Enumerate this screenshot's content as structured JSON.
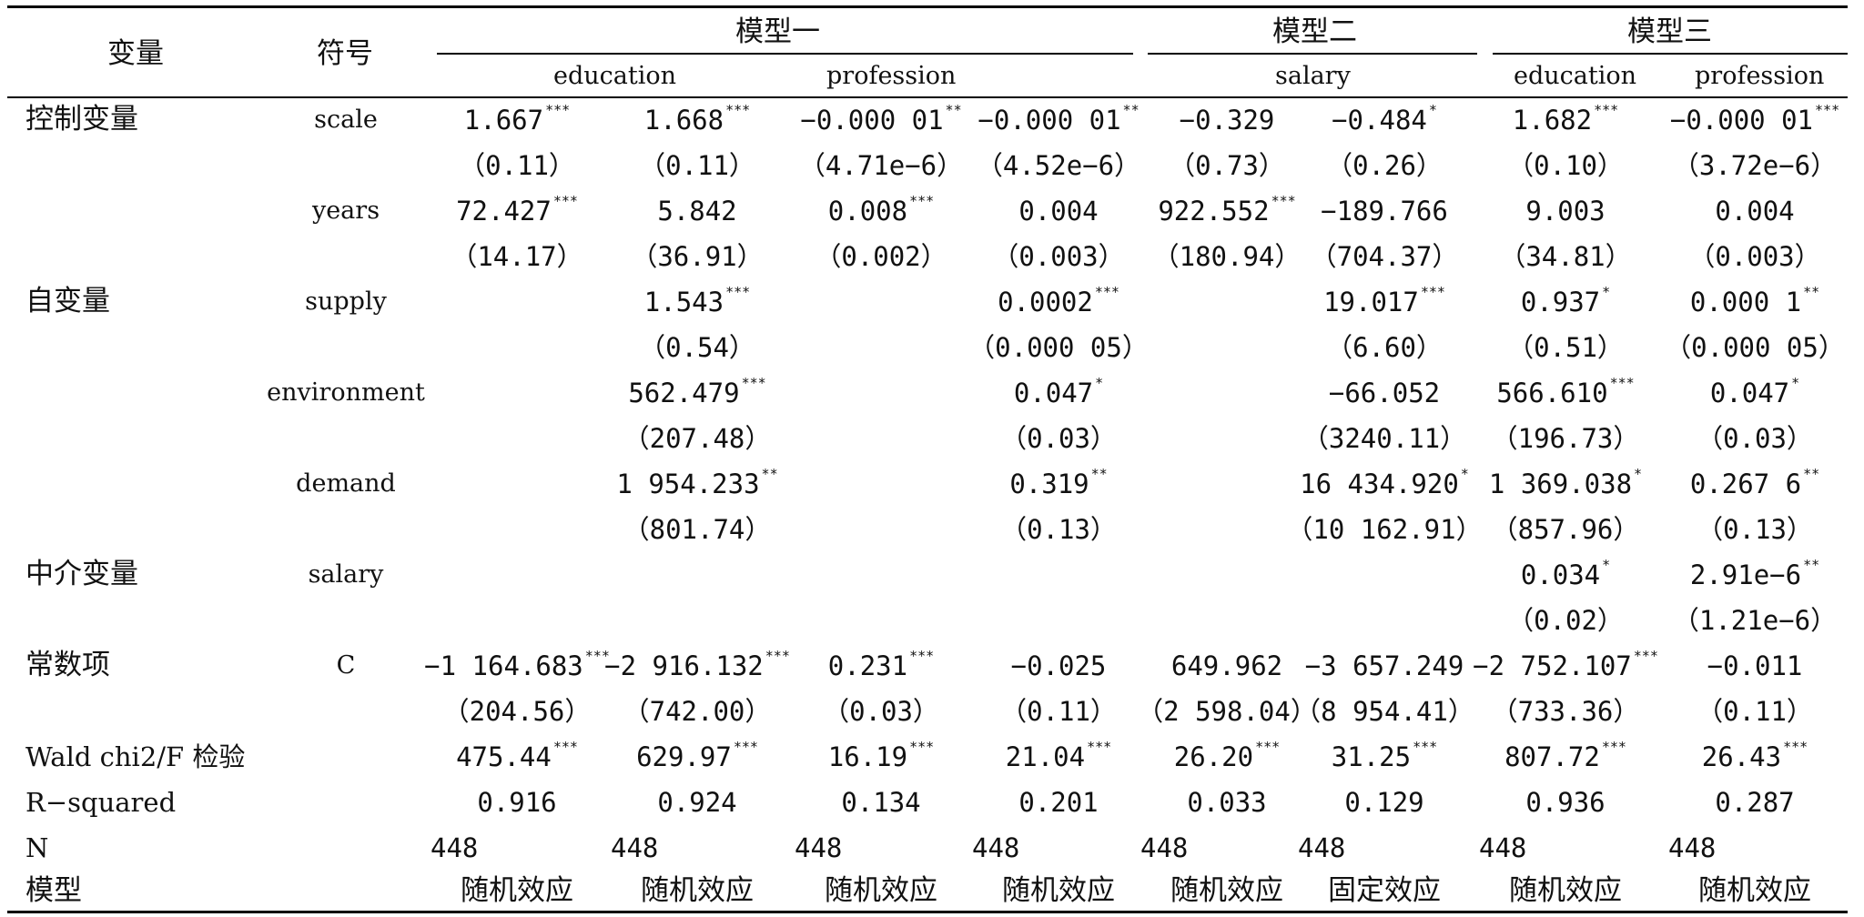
{
  "headers": {
    "variable": "变量",
    "symbol": "符号",
    "groups": [
      "模型一",
      "模型二",
      "模型三"
    ],
    "subheaders": [
      "education",
      "profession",
      "salary",
      "education",
      "profession"
    ]
  },
  "rows": [
    {
      "label": "控制变量",
      "symbol": "scale",
      "coef": [
        [
          "1.667",
          "***"
        ],
        [
          "1.668",
          "***"
        ],
        [
          "−0.000 01",
          "**"
        ],
        [
          "−0.000 01",
          "**"
        ],
        [
          "−0.329",
          ""
        ],
        [
          "−0.484",
          "*"
        ],
        [
          "1.682",
          "***"
        ],
        [
          "−0.000 01",
          "***"
        ]
      ],
      "se": [
        "（0.11）",
        "（0.11）",
        "（4.71e−6）",
        "（4.52e−6）",
        "（0.73）",
        "（0.26）",
        "（0.10）",
        "（3.72e−6）"
      ]
    },
    {
      "label": "",
      "symbol": "years",
      "coef": [
        [
          "72.427",
          "***"
        ],
        [
          "5.842",
          ""
        ],
        [
          "0.008",
          "***"
        ],
        [
          "0.004",
          ""
        ],
        [
          "922.552",
          "***"
        ],
        [
          "−189.766",
          ""
        ],
        [
          "9.003",
          ""
        ],
        [
          "0.004",
          ""
        ]
      ],
      "se": [
        "（14.17）",
        "（36.91）",
        "（0.002）",
        "（0.003）",
        "（180.94）",
        "（704.37）",
        "（34.81）",
        "（0.003）"
      ]
    },
    {
      "label": "自变量",
      "symbol": "supply",
      "coef": [
        [
          "",
          ""
        ],
        [
          "1.543",
          "***"
        ],
        [
          "",
          ""
        ],
        [
          "0.0002",
          "***"
        ],
        [
          "",
          ""
        ],
        [
          "19.017",
          "***"
        ],
        [
          "0.937",
          "*"
        ],
        [
          "0.000 1",
          "**"
        ]
      ],
      "se": [
        "",
        "（0.54）",
        "",
        "（0.000 05）",
        "",
        "（6.60）",
        "（0.51）",
        "（0.000 05）"
      ]
    },
    {
      "label": "",
      "symbol": "environment",
      "coef": [
        [
          "",
          ""
        ],
        [
          "562.479",
          "***"
        ],
        [
          "",
          ""
        ],
        [
          "0.047",
          "*"
        ],
        [
          "",
          ""
        ],
        [
          "−66.052",
          ""
        ],
        [
          "566.610",
          "***"
        ],
        [
          "0.047",
          "*"
        ]
      ],
      "se": [
        "",
        "（207.48）",
        "",
        "（0.03）",
        "",
        "（3240.11）",
        "（196.73）",
        "（0.03）"
      ]
    },
    {
      "label": "",
      "symbol": "demand",
      "coef": [
        [
          "",
          ""
        ],
        [
          "1 954.233",
          "**"
        ],
        [
          "",
          ""
        ],
        [
          "0.319",
          "**"
        ],
        [
          "",
          ""
        ],
        [
          "16 434.920",
          "*"
        ],
        [
          "1 369.038",
          "*"
        ],
        [
          "0.267 6",
          "**"
        ]
      ],
      "se": [
        "",
        "（801.74）",
        "",
        "（0.13）",
        "",
        "（10 162.91）",
        "（857.96）",
        "（0.13）"
      ]
    },
    {
      "label": "中介变量",
      "symbol": "salary",
      "coef": [
        [
          "",
          ""
        ],
        [
          "",
          ""
        ],
        [
          "",
          ""
        ],
        [
          "",
          ""
        ],
        [
          "",
          ""
        ],
        [
          "",
          ""
        ],
        [
          "0.034",
          "*"
        ],
        [
          "2.91e−6",
          "**"
        ]
      ],
      "se": [
        "",
        "",
        "",
        "",
        "",
        "",
        "（0.02）",
        "（1.21e−6）"
      ]
    },
    {
      "label": "常数项",
      "symbol": "C",
      "coef": [
        [
          "−1 164.683",
          "***"
        ],
        [
          "−2 916.132",
          "***"
        ],
        [
          "0.231",
          "***"
        ],
        [
          "−0.025",
          ""
        ],
        [
          "649.962",
          ""
        ],
        [
          "−3 657.249",
          ""
        ],
        [
          "−2 752.107",
          "***"
        ],
        [
          "−0.011",
          ""
        ]
      ],
      "se": [
        "（204.56）",
        "（742.00）",
        "（0.03）",
        "（0.11）",
        "（2 598.04）",
        "（8 954.41）",
        "（733.36）",
        "（0.11）"
      ]
    }
  ],
  "stats": [
    {
      "label": "Wald chi2/F 检验",
      "values": [
        [
          "475.44",
          "***"
        ],
        [
          "629.97",
          "***"
        ],
        [
          "16.19",
          "***"
        ],
        [
          "21.04",
          "***"
        ],
        [
          "26.20",
          "***"
        ],
        [
          "31.25",
          "***"
        ],
        [
          "807.72",
          "***"
        ],
        [
          "26.43",
          "***"
        ]
      ]
    },
    {
      "label": "R−squared",
      "values": [
        [
          "0.916",
          ""
        ],
        [
          "0.924",
          ""
        ],
        [
          "0.134",
          ""
        ],
        [
          "0.201",
          ""
        ],
        [
          "0.033",
          ""
        ],
        [
          "0.129",
          ""
        ],
        [
          "0.936",
          ""
        ],
        [
          "0.287",
          ""
        ]
      ]
    }
  ],
  "n_row": {
    "label": "N",
    "values": [
      "448",
      "448",
      "448",
      "448",
      "448",
      "448",
      "448",
      "448"
    ]
  },
  "model_row": {
    "label": "模型",
    "values": [
      "随机效应",
      "随机效应",
      "随机效应",
      "随机效应",
      "随机效应",
      "固定效应",
      "随机效应",
      "随机效应"
    ]
  }
}
